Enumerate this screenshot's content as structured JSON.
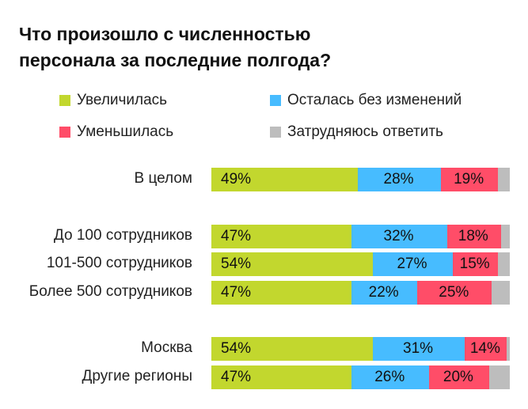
{
  "chart_data": {
    "type": "bar",
    "stacked": true,
    "orientation": "horizontal",
    "title": "Что произошло с численностью персонала за последние полгода?",
    "title_lines": [
      "Что произошло с численностью",
      "персонала за последние полгода?"
    ],
    "legend_placement": "top",
    "categories": [
      "В целом",
      "До 100 сотрудников",
      "101-500 сотрудников",
      "Более 500 сотрудников",
      "Москва",
      "Другие регионы"
    ],
    "groups": [
      [
        0
      ],
      [
        1,
        2,
        3
      ],
      [
        4,
        5
      ]
    ],
    "series": [
      {
        "name": "Увеличилась",
        "color": "#c2d72e",
        "values": [
          49,
          47,
          54,
          47,
          54,
          47
        ]
      },
      {
        "name": "Осталась без изменений",
        "color": "#47bcff",
        "values": [
          28,
          32,
          27,
          22,
          31,
          26
        ]
      },
      {
        "name": "Уменьшилась",
        "color": "#ff4d68",
        "values": [
          19,
          18,
          15,
          25,
          14,
          20
        ]
      },
      {
        "name": "Затрудняюсь ответить",
        "color": "#bdbdbd",
        "values": [
          4,
          3,
          4,
          6,
          1,
          7
        ]
      }
    ],
    "labeled_series": [
      0,
      1,
      2
    ],
    "xlim": [
      0,
      100
    ],
    "value_suffix": "%"
  }
}
